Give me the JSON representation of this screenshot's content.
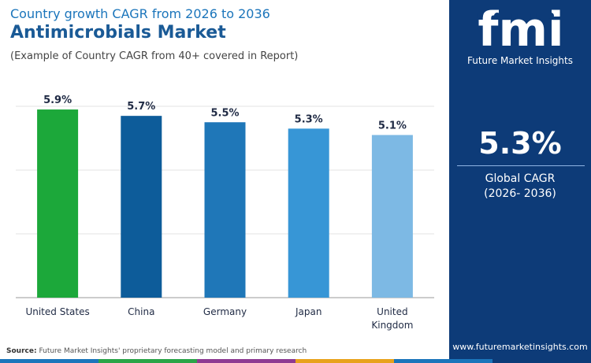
{
  "header": {
    "subtitle": "Country growth CAGR from 2026 to 2036",
    "title": "Antimicrobials Market",
    "note": "(Example of Country CAGR from 40+ covered in Report)"
  },
  "chart_data": {
    "type": "bar",
    "categories": [
      "United States",
      "China",
      "Germany",
      "Japan",
      "United Kingdom"
    ],
    "category_lines": [
      [
        "United States"
      ],
      [
        "China"
      ],
      [
        "Germany"
      ],
      [
        "Japan"
      ],
      [
        "United",
        "Kingdom"
      ]
    ],
    "values": [
      5.9,
      5.7,
      5.5,
      5.3,
      5.1
    ],
    "data_labels": [
      "5.9%",
      "5.7%",
      "5.5%",
      "5.3%",
      "5.1%"
    ],
    "bar_colors": [
      "#1ca83a",
      "#0d5c9a",
      "#1f77b8",
      "#3796d6",
      "#7db9e4"
    ],
    "ylim": [
      0,
      6
    ],
    "grid": true,
    "xlabel": "",
    "ylabel": ""
  },
  "source": {
    "label": "Source:",
    "text": "Future Market Insights' proprietary forecasting model and primary research"
  },
  "side_panel": {
    "logo_text": "fmi",
    "logo_subtitle": "Future Market Insights",
    "kpi_value": "5.3%",
    "kpi_label": "Global CAGR",
    "kpi_period": "(2026- 2036)",
    "website": "www.futuremarketinsights.com",
    "background_color": "#0d3b78"
  },
  "bottom_stripe_colors": [
    "#1b75bb",
    "#2aa548",
    "#8e3a92",
    "#e8a21c",
    "#1b75bb",
    "#0d3b78"
  ]
}
